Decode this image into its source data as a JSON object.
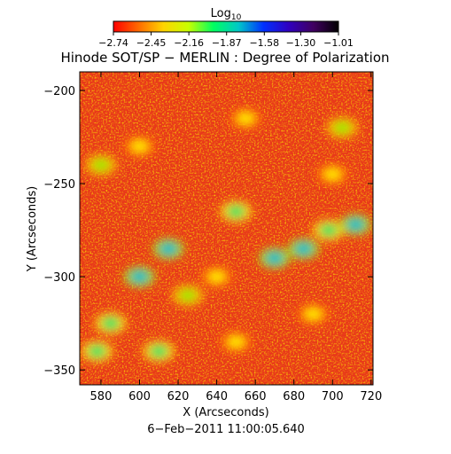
{
  "chart_data": {
    "type": "heatmap",
    "title": "Hinode SOT/SP − MERLIN : Degree of Polarization",
    "xlabel": "X (Arcseconds)",
    "ylabel": "Y (Arcseconds)",
    "xlim": [
      569,
      721
    ],
    "ylim": [
      -358,
      -190
    ],
    "x_ticks": [
      580,
      600,
      620,
      640,
      660,
      680,
      700,
      720
    ],
    "x_tick_labels": [
      "580",
      "600",
      "620",
      "640",
      "660",
      "680",
      "700",
      "720"
    ],
    "y_ticks": [
      -350,
      -300,
      -250,
      -200
    ],
    "y_tick_labels": [
      "−350",
      "−300",
      "−250",
      "−200"
    ],
    "timestamp": "6−Feb−2011 11:00:05.640",
    "colorbar": {
      "label_base": "Log",
      "label_sub": "10",
      "range": [
        -2.74,
        -1.01
      ],
      "tick_values": [
        -2.74,
        -2.45,
        -2.16,
        -1.87,
        -1.58,
        -1.3,
        -1.01
      ],
      "tick_labels": [
        "−2.74",
        "−2.45",
        "−2.16",
        "−1.87",
        "−1.58",
        "−1.30",
        "−1.01"
      ],
      "colors": [
        "#ff0000",
        "#ff6a00",
        "#ffd400",
        "#c8ff00",
        "#00ff60",
        "#00c8c8",
        "#0030ff",
        "#3000c0",
        "#400060",
        "#000000"
      ]
    },
    "map_colors": [
      "#e83a10",
      "#ff6a00",
      "#ffc000",
      "#ffe600",
      "#9fe600",
      "#20e060",
      "#00b8c8",
      "#0028e0"
    ],
    "features": [
      {
        "x": 600,
        "y": -300,
        "value": -1.3
      },
      {
        "x": 615,
        "y": -285,
        "value": -1.3
      },
      {
        "x": 578,
        "y": -340,
        "value": -1.4
      },
      {
        "x": 610,
        "y": -340,
        "value": -1.5
      },
      {
        "x": 585,
        "y": -325,
        "value": -1.6
      },
      {
        "x": 650,
        "y": -265,
        "value": -1.5
      },
      {
        "x": 670,
        "y": -290,
        "value": -1.3
      },
      {
        "x": 685,
        "y": -285,
        "value": -1.35
      },
      {
        "x": 698,
        "y": -275,
        "value": -1.4
      },
      {
        "x": 712,
        "y": -272,
        "value": -1.3
      },
      {
        "x": 640,
        "y": -300,
        "value": -1.9
      },
      {
        "x": 625,
        "y": -310,
        "value": -1.8
      },
      {
        "x": 705,
        "y": -220,
        "value": -1.8
      },
      {
        "x": 700,
        "y": -245,
        "value": -1.9
      },
      {
        "x": 580,
        "y": -240,
        "value": -1.85
      },
      {
        "x": 655,
        "y": -215,
        "value": -2.0
      },
      {
        "x": 690,
        "y": -320,
        "value": -1.9
      },
      {
        "x": 650,
        "y": -335,
        "value": -2.0
      },
      {
        "x": 600,
        "y": -230,
        "value": -2.05
      }
    ]
  }
}
